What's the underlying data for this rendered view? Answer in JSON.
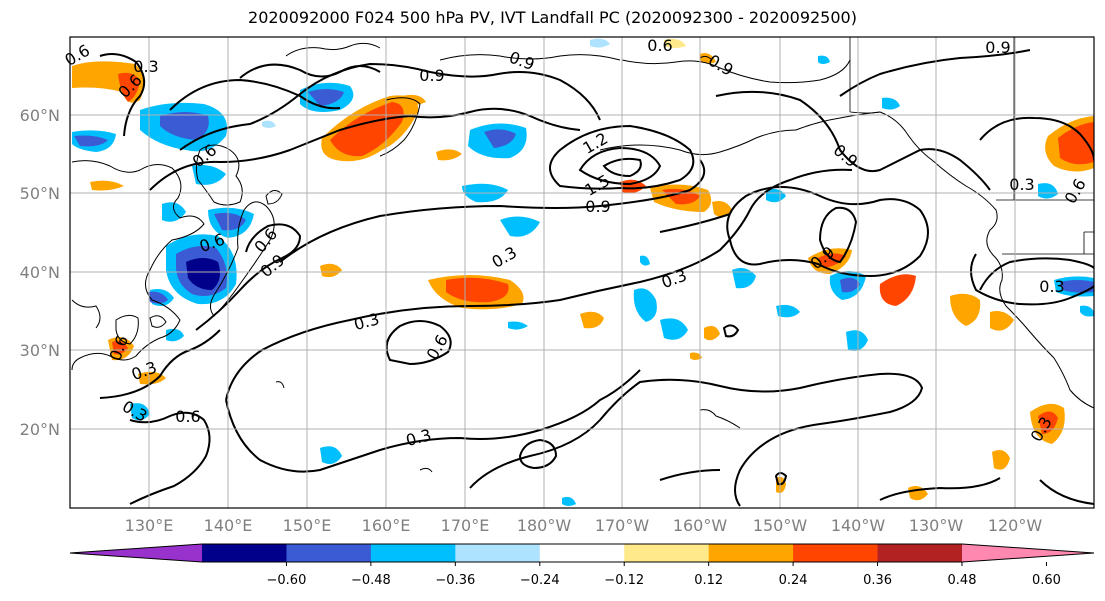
{
  "title": "2020092000 F024 500 hPa PV, IVT Landfall PC (2020092300 - 2020092500)",
  "lat_labels": [
    "60°N",
    "50°N",
    "40°N",
    "30°N",
    "20°N"
  ],
  "lon_labels": [
    "130°E",
    "140°E",
    "150°E",
    "160°E",
    "170°E",
    "180°W",
    "170°W",
    "160°W",
    "150°W",
    "140°W",
    "130°W",
    "120°W"
  ],
  "colorbar": {
    "ticks": [
      "−0.60",
      "−0.48",
      "−0.36",
      "−0.24",
      "−0.12",
      "0.12",
      "0.24",
      "0.36",
      "0.48",
      "0.60"
    ],
    "colors": [
      "#9932CC",
      "#00008B",
      "#3B5BD4",
      "#00BFFF",
      "#AEE3FF",
      "#FFFFFF",
      "#FFE98A",
      "#FFA500",
      "#FF4500",
      "#B22222",
      "#FF88B0"
    ]
  },
  "contour_labels": [
    "0.6",
    "0.6",
    "0.3",
    "0.9",
    "0.9",
    "0.6",
    "0.9",
    "0.9",
    "0.6",
    "0.6",
    "0.9",
    "0.3",
    "0.6",
    "1.2",
    "1.5",
    "0.9",
    "0.3",
    "0.3",
    "0.3",
    "0.3",
    "0.6",
    "0.6",
    "0.3",
    "0.9",
    "0.9",
    "0.3",
    "0.3",
    "0.6",
    "0.6",
    "0.3"
  ]
}
